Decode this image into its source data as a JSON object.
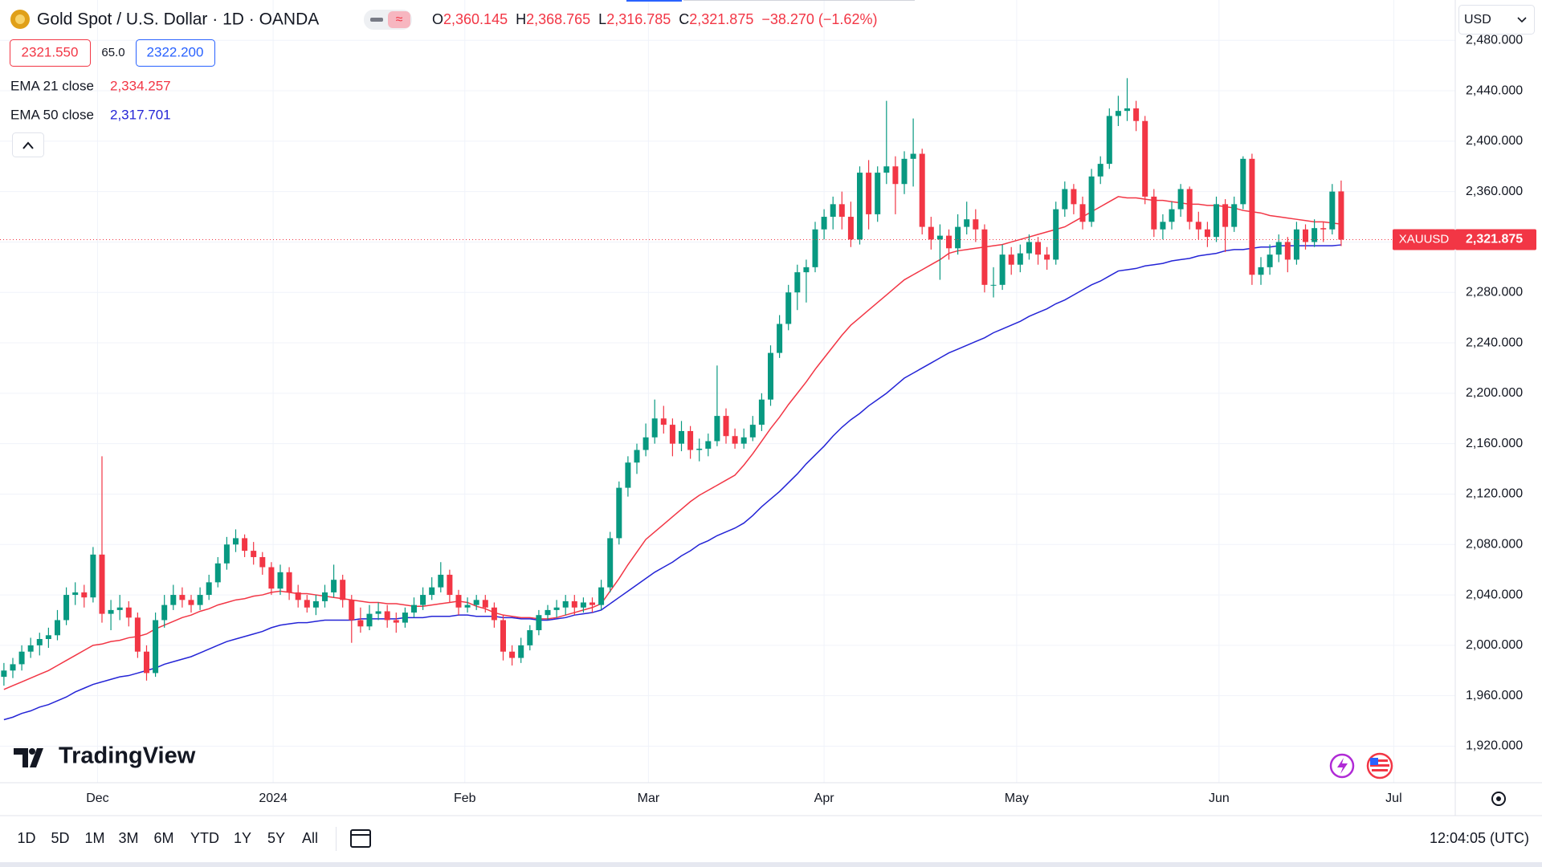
{
  "header": {
    "title": "Gold Spot / U.S. Dollar · 1D · OANDA",
    "ohlc_letters": [
      "O",
      "H",
      "L",
      "C"
    ],
    "ohlc_values": [
      "2,360.145",
      "2,368.765",
      "2,316.785",
      "2,321.875"
    ],
    "change": "−38.270 (−1.62%)",
    "sell": "2321.550",
    "spread": "65.0",
    "buy": "2322.200"
  },
  "currency": "USD",
  "logo": "TradingView",
  "toolbar": {
    "ranges": [
      "1D",
      "5D",
      "1M",
      "3M",
      "6M",
      "YTD",
      "1Y",
      "5Y",
      "All"
    ],
    "time": "12:04:05 (UTC)"
  },
  "chart_data": {
    "type": "candlestick",
    "up_color": "#089981",
    "down_color": "#f23645",
    "ohlc": [
      [
        1975,
        1986,
        1968,
        1980
      ],
      [
        1980,
        1990,
        1974,
        1985
      ],
      [
        1985,
        2000,
        1980,
        1995
      ],
      [
        1995,
        2006,
        1990,
        2000
      ],
      [
        2000,
        2010,
        1992,
        2005
      ],
      [
        2005,
        2014,
        1998,
        2008
      ],
      [
        2008,
        2028,
        2004,
        2020
      ],
      [
        2020,
        2046,
        2016,
        2040
      ],
      [
        2040,
        2050,
        2032,
        2042
      ],
      [
        2042,
        2048,
        2030,
        2038
      ],
      [
        2038,
        2078,
        2034,
        2072
      ],
      [
        2072,
        2150,
        2018,
        2025
      ],
      [
        2025,
        2036,
        2012,
        2028
      ],
      [
        2028,
        2040,
        2020,
        2030
      ],
      [
        2030,
        2035,
        2015,
        2022
      ],
      [
        2022,
        2026,
        1990,
        1995
      ],
      [
        1995,
        2000,
        1972,
        1978
      ],
      [
        1978,
        2026,
        1975,
        2020
      ],
      [
        2020,
        2040,
        2014,
        2032
      ],
      [
        2032,
        2048,
        2028,
        2040
      ],
      [
        2040,
        2046,
        2030,
        2036
      ],
      [
        2036,
        2040,
        2026,
        2032
      ],
      [
        2032,
        2046,
        2028,
        2040
      ],
      [
        2040,
        2056,
        2036,
        2050
      ],
      [
        2050,
        2070,
        2046,
        2065
      ],
      [
        2065,
        2086,
        2060,
        2080
      ],
      [
        2080,
        2092,
        2074,
        2085
      ],
      [
        2085,
        2088,
        2070,
        2075
      ],
      [
        2075,
        2082,
        2064,
        2070
      ],
      [
        2070,
        2074,
        2056,
        2062
      ],
      [
        2062,
        2066,
        2040,
        2045
      ],
      [
        2045,
        2064,
        2040,
        2058
      ],
      [
        2058,
        2062,
        2036,
        2042
      ],
      [
        2042,
        2048,
        2030,
        2036
      ],
      [
        2036,
        2040,
        2026,
        2030
      ],
      [
        2030,
        2040,
        2024,
        2035
      ],
      [
        2035,
        2048,
        2030,
        2042
      ],
      [
        2042,
        2064,
        2038,
        2052
      ],
      [
        2052,
        2056,
        2030,
        2036
      ],
      [
        2036,
        2040,
        2002,
        2020
      ],
      [
        2020,
        2030,
        2010,
        2015
      ],
      [
        2015,
        2032,
        2012,
        2025
      ],
      [
        2025,
        2034,
        2020,
        2027
      ],
      [
        2027,
        2032,
        2014,
        2020
      ],
      [
        2020,
        2026,
        2010,
        2018
      ],
      [
        2018,
        2030,
        2014,
        2026
      ],
      [
        2026,
        2038,
        2022,
        2032
      ],
      [
        2032,
        2046,
        2028,
        2040
      ],
      [
        2040,
        2054,
        2036,
        2046
      ],
      [
        2046,
        2066,
        2042,
        2056
      ],
      [
        2056,
        2060,
        2034,
        2040
      ],
      [
        2040,
        2044,
        2024,
        2030
      ],
      [
        2030,
        2038,
        2026,
        2032
      ],
      [
        2032,
        2040,
        2028,
        2036
      ],
      [
        2036,
        2040,
        2026,
        2030
      ],
      [
        2030,
        2034,
        2014,
        2020
      ],
      [
        2020,
        2024,
        1988,
        1995
      ],
      [
        1995,
        2000,
        1984,
        1990
      ],
      [
        1990,
        2006,
        1986,
        2000
      ],
      [
        2000,
        2016,
        1996,
        2012
      ],
      [
        2012,
        2028,
        2008,
        2024
      ],
      [
        2024,
        2032,
        2020,
        2028
      ],
      [
        2028,
        2036,
        2022,
        2030
      ],
      [
        2030,
        2040,
        2024,
        2035
      ],
      [
        2035,
        2040,
        2024,
        2030
      ],
      [
        2030,
        2038,
        2026,
        2034
      ],
      [
        2034,
        2038,
        2026,
        2032
      ],
      [
        2032,
        2052,
        2028,
        2046
      ],
      [
        2046,
        2090,
        2042,
        2085
      ],
      [
        2085,
        2130,
        2080,
        2125
      ],
      [
        2125,
        2150,
        2118,
        2145
      ],
      [
        2145,
        2160,
        2136,
        2155
      ],
      [
        2155,
        2176,
        2150,
        2165
      ],
      [
        2165,
        2195,
        2160,
        2180
      ],
      [
        2180,
        2190,
        2168,
        2175
      ],
      [
        2175,
        2180,
        2150,
        2160
      ],
      [
        2160,
        2178,
        2154,
        2170
      ],
      [
        2170,
        2174,
        2148,
        2155
      ],
      [
        2155,
        2164,
        2146,
        2156
      ],
      [
        2156,
        2168,
        2150,
        2162
      ],
      [
        2162,
        2222,
        2158,
        2182
      ],
      [
        2182,
        2188,
        2160,
        2166
      ],
      [
        2166,
        2172,
        2156,
        2160
      ],
      [
        2160,
        2172,
        2156,
        2165
      ],
      [
        2165,
        2182,
        2162,
        2175
      ],
      [
        2175,
        2200,
        2170,
        2195
      ],
      [
        2195,
        2238,
        2190,
        2232
      ],
      [
        2232,
        2262,
        2228,
        2255
      ],
      [
        2255,
        2286,
        2250,
        2280
      ],
      [
        2280,
        2302,
        2266,
        2296
      ],
      [
        2296,
        2306,
        2272,
        2300
      ],
      [
        2300,
        2336,
        2296,
        2330
      ],
      [
        2330,
        2346,
        2322,
        2340
      ],
      [
        2340,
        2356,
        2330,
        2350
      ],
      [
        2350,
        2360,
        2330,
        2340
      ],
      [
        2340,
        2352,
        2316,
        2322
      ],
      [
        2322,
        2380,
        2318,
        2375
      ],
      [
        2375,
        2385,
        2330,
        2342
      ],
      [
        2342,
        2380,
        2336,
        2375
      ],
      [
        2375,
        2432,
        2366,
        2380
      ],
      [
        2380,
        2388,
        2342,
        2366
      ],
      [
        2366,
        2392,
        2358,
        2386
      ],
      [
        2386,
        2418,
        2364,
        2390
      ],
      [
        2390,
        2394,
        2326,
        2332
      ],
      [
        2332,
        2340,
        2314,
        2322
      ],
      [
        2322,
        2334,
        2290,
        2325
      ],
      [
        2325,
        2330,
        2306,
        2315
      ],
      [
        2315,
        2342,
        2310,
        2332
      ],
      [
        2332,
        2352,
        2326,
        2338
      ],
      [
        2338,
        2346,
        2320,
        2330
      ],
      [
        2330,
        2334,
        2280,
        2286
      ],
      [
        2286,
        2300,
        2276,
        2286
      ],
      [
        2286,
        2318,
        2282,
        2310
      ],
      [
        2310,
        2316,
        2294,
        2302
      ],
      [
        2302,
        2318,
        2296,
        2311
      ],
      [
        2311,
        2326,
        2306,
        2320
      ],
      [
        2320,
        2324,
        2302,
        2310
      ],
      [
        2310,
        2316,
        2298,
        2306
      ],
      [
        2306,
        2352,
        2302,
        2346
      ],
      [
        2346,
        2368,
        2340,
        2362
      ],
      [
        2362,
        2366,
        2342,
        2350
      ],
      [
        2350,
        2356,
        2330,
        2336
      ],
      [
        2336,
        2378,
        2332,
        2372
      ],
      [
        2372,
        2388,
        2366,
        2382
      ],
      [
        2382,
        2426,
        2378,
        2420
      ],
      [
        2420,
        2436,
        2412,
        2424
      ],
      [
        2424,
        2450,
        2416,
        2426
      ],
      [
        2426,
        2432,
        2408,
        2416
      ],
      [
        2416,
        2420,
        2350,
        2356
      ],
      [
        2356,
        2362,
        2324,
        2330
      ],
      [
        2330,
        2342,
        2322,
        2336
      ],
      [
        2336,
        2352,
        2330,
        2346
      ],
      [
        2346,
        2366,
        2340,
        2362
      ],
      [
        2362,
        2364,
        2330,
        2336
      ],
      [
        2336,
        2344,
        2322,
        2330
      ],
      [
        2330,
        2336,
        2316,
        2324
      ],
      [
        2324,
        2356,
        2320,
        2350
      ],
      [
        2350,
        2354,
        2312,
        2332
      ],
      [
        2332,
        2356,
        2328,
        2350
      ],
      [
        2350,
        2388,
        2346,
        2386
      ],
      [
        2386,
        2390,
        2286,
        2294
      ],
      [
        2294,
        2308,
        2286,
        2300
      ],
      [
        2300,
        2318,
        2294,
        2310
      ],
      [
        2310,
        2326,
        2304,
        2320
      ],
      [
        2320,
        2324,
        2296,
        2306
      ],
      [
        2306,
        2336,
        2302,
        2330
      ],
      [
        2330,
        2334,
        2314,
        2320
      ],
      [
        2320,
        2338,
        2316,
        2331
      ],
      [
        2331,
        2336,
        2320,
        2330
      ],
      [
        2330,
        2366,
        2326,
        2360
      ],
      [
        2360.145,
        2368.765,
        2316.785,
        2321.875
      ]
    ],
    "series": [
      {
        "name": "EMA 21 close",
        "color": "#f23645",
        "value_label": "2,334.257",
        "values": [
          1965,
          1968,
          1971,
          1974,
          1977,
          1980,
          1984,
          1988,
          1992,
          1996,
          2000,
          2001,
          2003,
          2004,
          2006,
          2007,
          2009,
          2013,
          2016,
          2019,
          2022,
          2024,
          2027,
          2029,
          2032,
          2034,
          2036,
          2037,
          2039,
          2040,
          2042,
          2043,
          2042,
          2041,
          2041,
          2040,
          2039,
          2038,
          2037,
          2036,
          2035,
          2034,
          2034,
          2033,
          2033,
          2032,
          2031,
          2031,
          2032,
          2033,
          2034,
          2035,
          2034,
          2031,
          2029,
          2026,
          2024,
          2023,
          2022,
          2022,
          2021,
          2021,
          2022,
          2024,
          2026,
          2028,
          2030,
          2033,
          2043,
          2053,
          2064,
          2074,
          2084,
          2090,
          2096,
          2102,
          2108,
          2114,
          2119,
          2123,
          2127,
          2131,
          2135,
          2143,
          2152,
          2162,
          2172,
          2181,
          2191,
          2200,
          2209,
          2219,
          2228,
          2237,
          2246,
          2254,
          2260,
          2266,
          2272,
          2278,
          2284,
          2290,
          2294,
          2298,
          2302,
          2306,
          2311,
          2313,
          2314,
          2315,
          2316,
          2317,
          2318,
          2320,
          2322,
          2324,
          2326,
          2328,
          2330,
          2332,
          2336,
          2340,
          2344,
          2348,
          2352,
          2356,
          2355,
          2355,
          2354,
          2353,
          2353,
          2352,
          2351,
          2350,
          2350,
          2349,
          2349,
          2348,
          2347,
          2345,
          2344,
          2343,
          2341,
          2340,
          2339,
          2338,
          2337,
          2336,
          2336,
          2335,
          2334.257
        ]
      },
      {
        "name": "EMA 50 close",
        "color": "#2424d6",
        "value_label": "2,317.701",
        "values": [
          1941,
          1943,
          1946,
          1948,
          1951,
          1953,
          1956,
          1959,
          1963,
          1966,
          1969,
          1971,
          1973,
          1975,
          1976,
          1978,
          1980,
          1982,
          1985,
          1987,
          1989,
          1991,
          1994,
          1997,
          2000,
          2003,
          2005,
          2007,
          2009,
          2011,
          2014,
          2016,
          2017,
          2018,
          2018,
          2019,
          2020,
          2020,
          2020,
          2020,
          2021,
          2021,
          2021,
          2021,
          2021,
          2022,
          2022,
          2022,
          2023,
          2023,
          2023,
          2024,
          2024,
          2023,
          2023,
          2023,
          2022,
          2022,
          2021,
          2021,
          2020,
          2020,
          2021,
          2022,
          2024,
          2025,
          2026,
          2028,
          2033,
          2038,
          2043,
          2048,
          2053,
          2058,
          2062,
          2066,
          2071,
          2075,
          2080,
          2083,
          2087,
          2090,
          2093,
          2097,
          2103,
          2110,
          2116,
          2122,
          2129,
          2136,
          2144,
          2151,
          2158,
          2166,
          2173,
          2179,
          2184,
          2190,
          2195,
          2200,
          2206,
          2212,
          2216,
          2220,
          2224,
          2228,
          2232,
          2235,
          2238,
          2241,
          2244,
          2248,
          2251,
          2254,
          2257,
          2261,
          2264,
          2267,
          2271,
          2274,
          2278,
          2282,
          2286,
          2289,
          2293,
          2297,
          2298,
          2299,
          2301,
          2302,
          2303,
          2305,
          2306,
          2307,
          2309,
          2310,
          2311,
          2313,
          2314,
          2314,
          2315,
          2316,
          2316,
          2317,
          2317,
          2317,
          2317,
          2317,
          2317,
          2317,
          2317.701
        ]
      }
    ],
    "price_line": {
      "name": "XAUUSD",
      "value": 2321.875,
      "label": "2,321.875",
      "color": "#f23645"
    },
    "ylim": [
      1891,
      2512
    ],
    "yticks": [
      {
        "value": 1920,
        "label": "1,920.000"
      },
      {
        "value": 1960,
        "label": "1,960.000"
      },
      {
        "value": 2000,
        "label": "2,000.000"
      },
      {
        "value": 2040,
        "label": "2,040.000"
      },
      {
        "value": 2080,
        "label": "2,080.000"
      },
      {
        "value": 2120,
        "label": "2,120.000"
      },
      {
        "value": 2160,
        "label": "2,160.000"
      },
      {
        "value": 2200,
        "label": "2,200.000"
      },
      {
        "value": 2240,
        "label": "2,240.000"
      },
      {
        "value": 2280,
        "label": "2,280.000"
      },
      {
        "value": 2320,
        "label": "2,320.000"
      },
      {
        "value": 2360,
        "label": "2,360.000"
      },
      {
        "value": 2400,
        "label": "2,400.000"
      },
      {
        "value": 2440,
        "label": "2,440.000"
      },
      {
        "value": 2480,
        "label": "2,480.000"
      }
    ],
    "xlim": [
      -0.44,
      162.8
    ],
    "xticks": [
      {
        "value": 10.5,
        "label": "Dec"
      },
      {
        "value": 30.2,
        "label": "2024"
      },
      {
        "value": 51.7,
        "label": "Feb"
      },
      {
        "value": 72.3,
        "label": "Mar"
      },
      {
        "value": 92,
        "label": "Apr"
      },
      {
        "value": 113.6,
        "label": "May"
      },
      {
        "value": 136.3,
        "label": "Jun"
      },
      {
        "value": 155.9,
        "label": "Jul"
      }
    ],
    "grid": true
  }
}
